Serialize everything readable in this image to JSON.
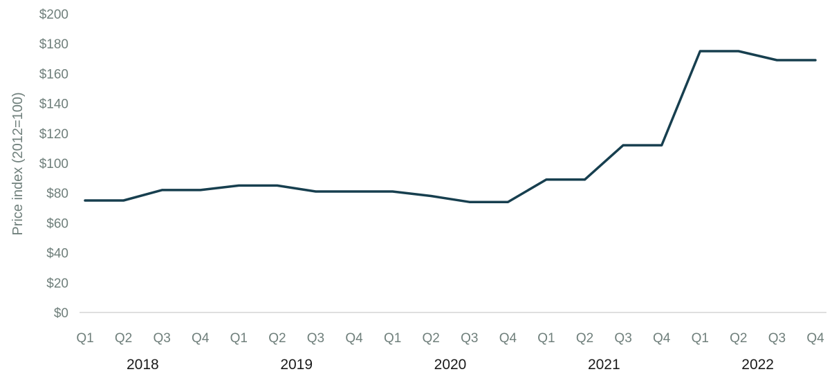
{
  "chart_data": {
    "type": "line",
    "ylabel": "Price index (2012=100)",
    "ylim": [
      0,
      200
    ],
    "y_ticks": [
      "$0",
      "$20",
      "$40",
      "$60",
      "$80",
      "$100",
      "$120",
      "$140",
      "$160",
      "$180",
      "$200"
    ],
    "categories": [
      "Q1",
      "Q2",
      "Q3",
      "Q4",
      "Q1",
      "Q2",
      "Q3",
      "Q4",
      "Q1",
      "Q2",
      "Q3",
      "Q4",
      "Q1",
      "Q2",
      "Q3",
      "Q4",
      "Q1",
      "Q2",
      "Q3",
      "Q4"
    ],
    "years": [
      "2018",
      "2019",
      "2020",
      "2021",
      "2022"
    ],
    "series": [
      {
        "values": [
          75,
          75,
          82,
          82,
          85,
          85,
          81,
          81,
          81,
          78,
          74,
          74,
          89,
          89,
          112,
          112,
          175,
          175,
          169,
          169
        ],
        "color": "#173f4f"
      }
    ],
    "grid": false
  }
}
